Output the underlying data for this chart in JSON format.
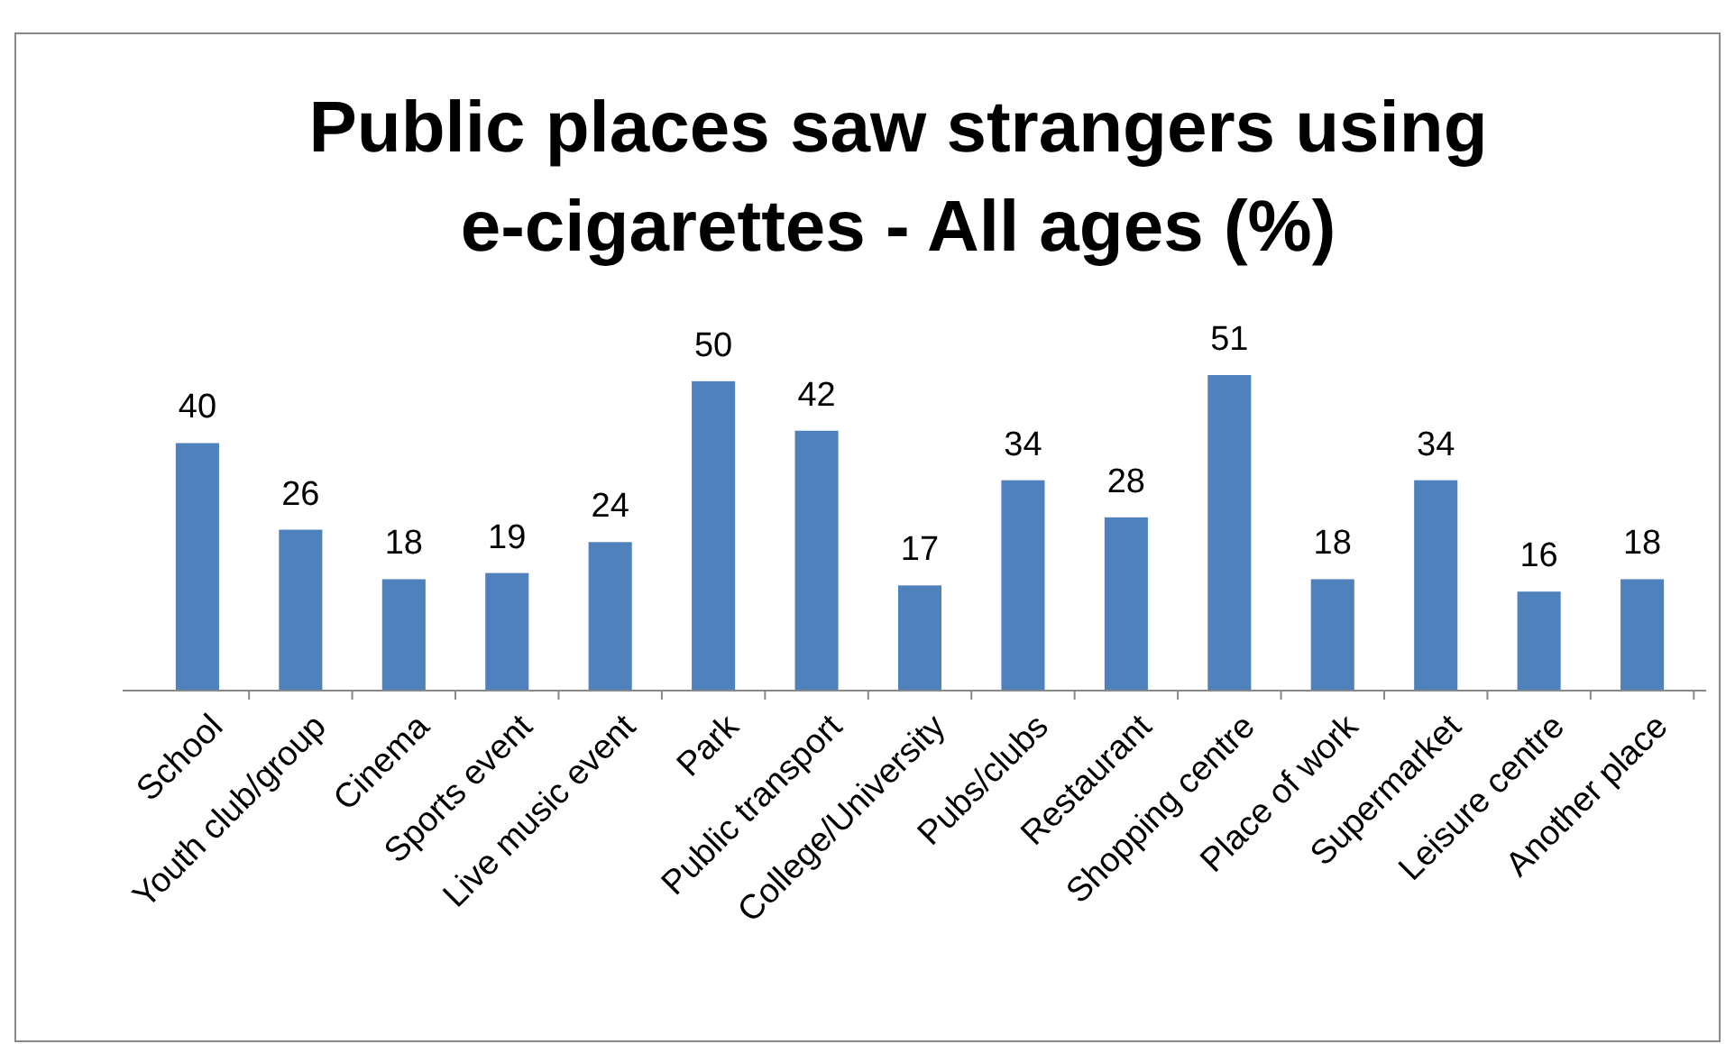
{
  "chart_data": {
    "type": "bar",
    "title": "Public places saw strangers using e-cigarettes - All ages (%)",
    "categories": [
      "School",
      "Youth club/group",
      "Cinema",
      "Sports event",
      "Live music event",
      "Park",
      "Public transport",
      "College/University",
      "Pubs/clubs",
      "Restaurant",
      "Shopping centre",
      "Place of work",
      "Supermarket",
      "Leisure centre",
      "Another place"
    ],
    "values": [
      40,
      26,
      18,
      19,
      24,
      50,
      42,
      17,
      34,
      28,
      51,
      18,
      34,
      16,
      18
    ],
    "color": "#4f81bd",
    "data_labels": true
  }
}
